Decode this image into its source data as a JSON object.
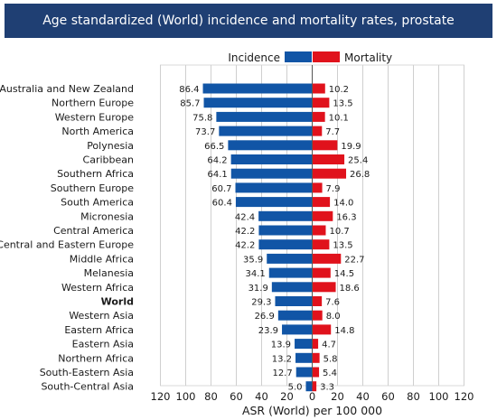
{
  "title": "Age standardized (World) incidence and mortality rates, prostate",
  "chart_data": {
    "type": "bar",
    "orientation": "horizontal-diverging",
    "title": "Age standardized (World) incidence and mortality rates, prostate",
    "xlabel": "ASR (World) per 100 000",
    "ylabel": "",
    "xlim": [
      -120,
      120
    ],
    "x_ticks": [
      "120",
      "100",
      "80",
      "60",
      "40",
      "20",
      "0",
      "20",
      "40",
      "60",
      "80",
      "100",
      "120"
    ],
    "grid": true,
    "legend_position": "top-center",
    "categories": [
      "Australia and New Zealand",
      "Northern Europe",
      "Western Europe",
      "North America",
      "Polynesia",
      "Caribbean",
      "Southern Africa",
      "Southern Europe",
      "South America",
      "Micronesia",
      "Central America",
      "Central and Eastern Europe",
      "Middle Africa",
      "Melanesia",
      "Western Africa",
      "World",
      "Western Asia",
      "Eastern Africa",
      "Eastern Asia",
      "Northern Africa",
      "South-Eastern Asia",
      "South-Central Asia"
    ],
    "highlight_category": "World",
    "series": [
      {
        "name": "Incidence",
        "side": "left",
        "color": "#1155a6",
        "values": [
          86.4,
          85.7,
          75.8,
          73.7,
          66.5,
          64.2,
          64.1,
          60.7,
          60.4,
          42.4,
          42.2,
          42.2,
          35.9,
          34.1,
          31.9,
          29.3,
          26.9,
          23.9,
          13.9,
          13.2,
          12.7,
          5.0
        ]
      },
      {
        "name": "Mortality",
        "side": "right",
        "color": "#e0121c",
        "values": [
          10.2,
          13.5,
          10.1,
          7.7,
          19.9,
          25.4,
          26.8,
          7.9,
          14.0,
          16.3,
          10.7,
          13.5,
          22.7,
          14.5,
          18.6,
          7.6,
          8.0,
          14.8,
          4.7,
          5.8,
          5.4,
          3.3
        ]
      }
    ]
  }
}
